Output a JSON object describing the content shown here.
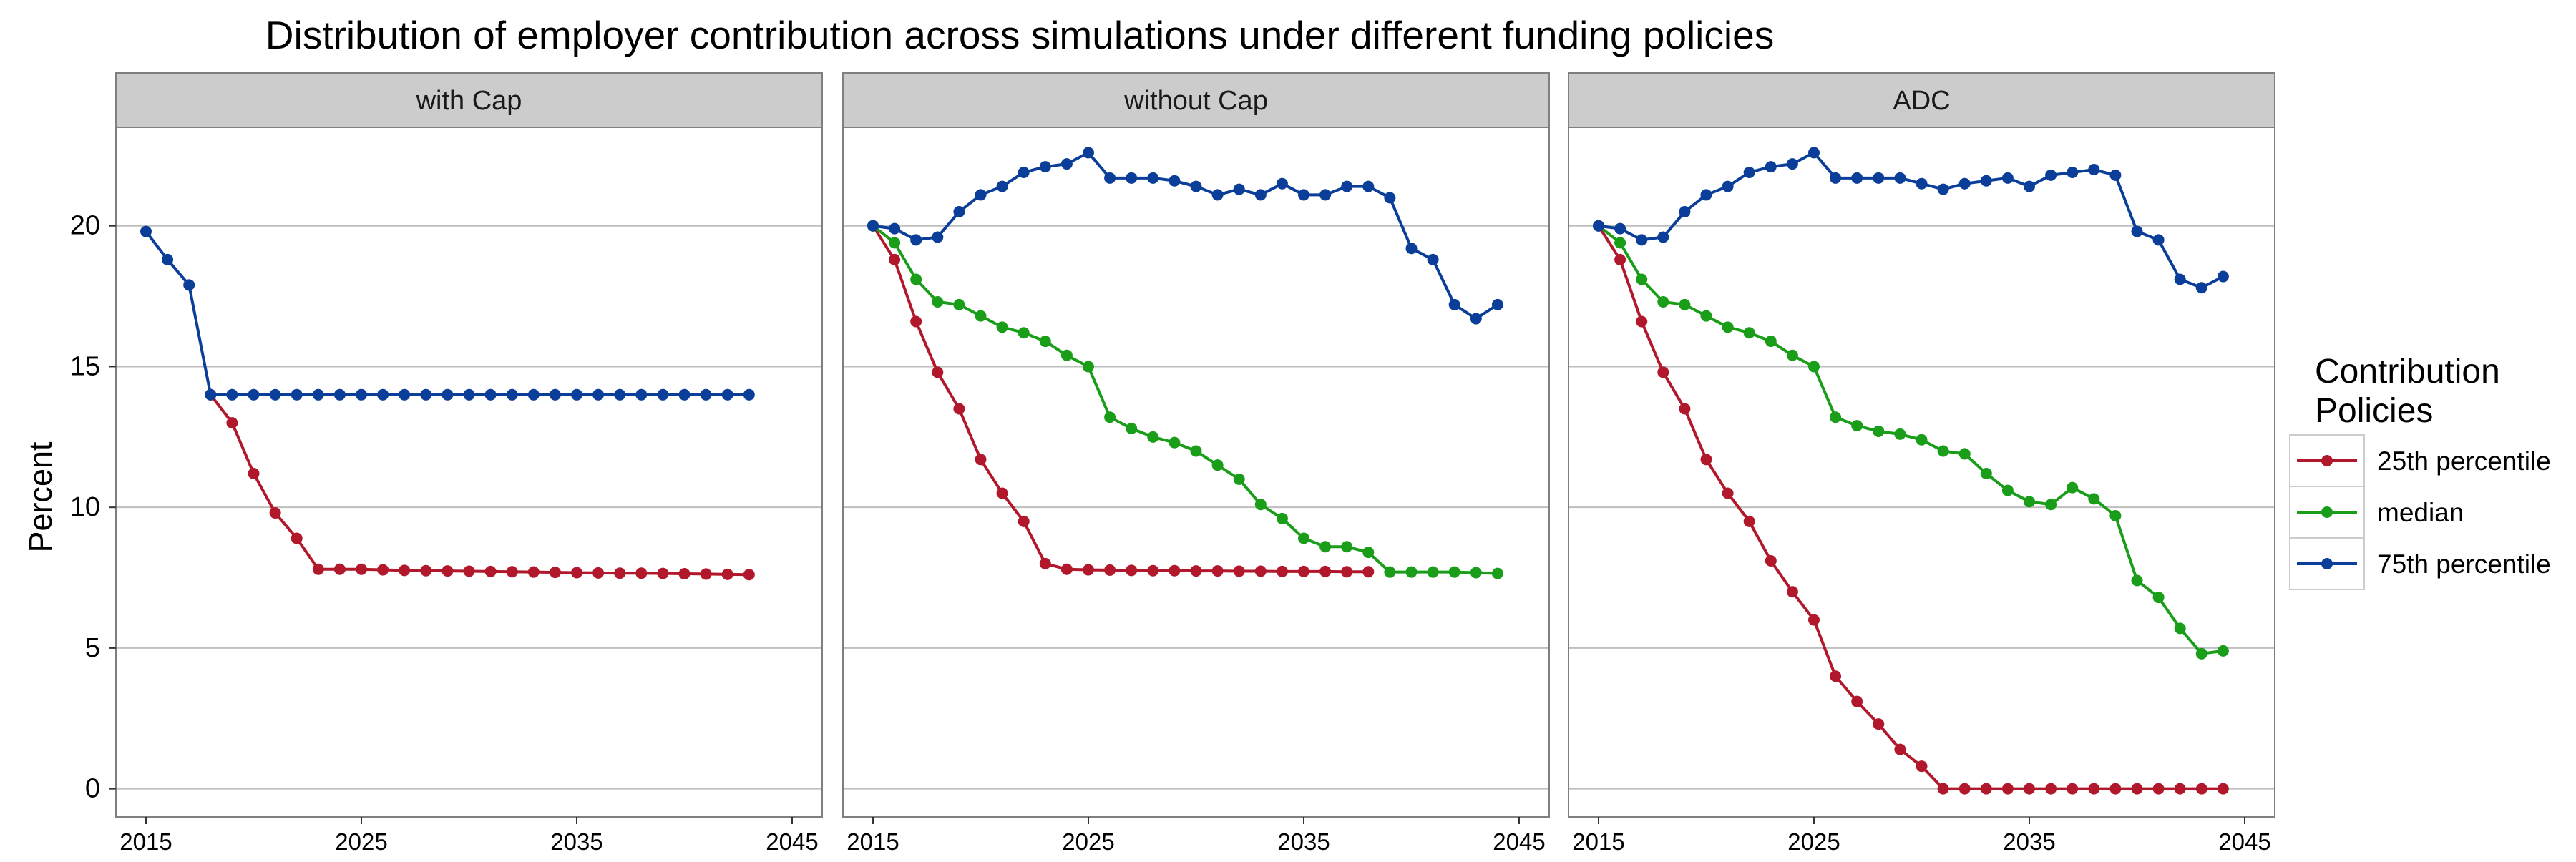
{
  "chart_data": {
    "type": "line",
    "title": "Distribution of employer contribution across simulations under different funding policies",
    "ylabel": "Percent",
    "xlabel": "",
    "xlim": [
      2015,
      2045
    ],
    "ylim": [
      -1,
      23.5
    ],
    "x_ticks": [
      2015,
      2025,
      2035,
      2045
    ],
    "y_ticks": [
      0,
      5,
      10,
      15,
      20
    ],
    "grid": true,
    "legend": {
      "title": "Contribution Policies",
      "position": "right",
      "entries": [
        {
          "label": "25th percentile",
          "color": "#B2182B"
        },
        {
          "label": "median",
          "color": "#1A9E1A"
        },
        {
          "label": "75th percentile",
          "color": "#0B3E99"
        }
      ]
    },
    "colors": {
      "p25": "#B2182B",
      "median": "#1A9E1A",
      "p75": "#0B3E99",
      "strip_bg": "#CCCCCC",
      "grid": "#BEBEBE",
      "frame": "#7F7F7F"
    },
    "panels": [
      {
        "label": "with Cap",
        "x_start": 2015,
        "series": [
          {
            "key": "p25",
            "name": "25th percentile",
            "color": "#B2182B",
            "x_start": 2018,
            "values": [
              14.0,
              13.0,
              11.2,
              9.8,
              8.9,
              7.8,
              7.8,
              7.8,
              7.78,
              7.76,
              7.75,
              7.74,
              7.73,
              7.72,
              7.71,
              7.7,
              7.69,
              7.68,
              7.67,
              7.66,
              7.66,
              7.65,
              7.64,
              7.63,
              7.62,
              7.61
            ]
          },
          {
            "key": "p75",
            "name": "75th percentile",
            "color": "#0B3E99",
            "x_start": 2015,
            "values": [
              19.8,
              18.8,
              17.9,
              14.0,
              14.0,
              14.0,
              14.0,
              14.0,
              14.0,
              14.0,
              14.0,
              14.0,
              14.0,
              14.0,
              14.0,
              14.0,
              14.0,
              14.0,
              14.0,
              14.0,
              14.0,
              14.0,
              14.0,
              14.0,
              14.0,
              14.0,
              14.0,
              14.0,
              14.0
            ]
          }
        ]
      },
      {
        "label": "without Cap",
        "x_start": 2015,
        "series": [
          {
            "key": "p25",
            "name": "25th percentile",
            "color": "#B2182B",
            "x_start": 2015,
            "values": [
              20.0,
              18.8,
              16.6,
              14.8,
              13.5,
              11.7,
              10.5,
              9.5,
              8.0,
              7.8,
              7.78,
              7.77,
              7.76,
              7.75,
              7.75,
              7.74,
              7.74,
              7.73,
              7.73,
              7.72,
              7.72,
              7.72,
              7.71,
              7.71
            ]
          },
          {
            "key": "median",
            "name": "median",
            "color": "#1A9E1A",
            "x_start": 2015,
            "values": [
              20.0,
              19.4,
              18.1,
              17.3,
              17.2,
              16.8,
              16.4,
              16.2,
              15.9,
              15.4,
              15.0,
              13.2,
              12.8,
              12.5,
              12.3,
              12.0,
              11.5,
              11.0,
              10.1,
              9.6,
              8.9,
              8.6,
              8.6,
              8.4,
              7.7,
              7.7,
              7.7,
              7.7,
              7.68,
              7.65
            ]
          },
          {
            "key": "p75",
            "name": "75th percentile",
            "color": "#0B3E99",
            "x_start": 2015,
            "values": [
              20.0,
              19.9,
              19.5,
              19.6,
              20.5,
              21.1,
              21.4,
              21.9,
              22.1,
              22.2,
              22.6,
              21.7,
              21.7,
              21.7,
              21.6,
              21.4,
              21.1,
              21.3,
              21.1,
              21.5,
              21.1,
              21.1,
              21.4,
              21.4,
              21.0,
              19.2,
              18.8,
              17.2,
              16.7,
              17.2
            ]
          }
        ]
      },
      {
        "label": "ADC",
        "x_start": 2015,
        "series": [
          {
            "key": "p25",
            "name": "25th percentile",
            "color": "#B2182B",
            "x_start": 2015,
            "values": [
              20.0,
              18.8,
              16.6,
              14.8,
              13.5,
              11.7,
              10.5,
              9.5,
              8.1,
              7.0,
              6.0,
              4.0,
              3.1,
              2.3,
              1.4,
              0.8,
              0,
              0,
              0,
              0,
              0,
              0,
              0,
              0,
              0,
              0,
              0,
              0,
              0,
              0
            ]
          },
          {
            "key": "median",
            "name": "median",
            "color": "#1A9E1A",
            "x_start": 2015,
            "values": [
              20.0,
              19.4,
              18.1,
              17.3,
              17.2,
              16.8,
              16.4,
              16.2,
              15.9,
              15.4,
              15.0,
              13.2,
              12.9,
              12.7,
              12.6,
              12.4,
              12.0,
              11.9,
              11.2,
              10.6,
              10.2,
              10.1,
              10.7,
              10.3,
              9.7,
              7.4,
              6.8,
              5.7,
              4.8,
              4.9
            ]
          },
          {
            "key": "p75",
            "name": "75th percentile",
            "color": "#0B3E99",
            "x_start": 2015,
            "values": [
              20.0,
              19.9,
              19.5,
              19.6,
              20.5,
              21.1,
              21.4,
              21.9,
              22.1,
              22.2,
              22.6,
              21.7,
              21.7,
              21.7,
              21.7,
              21.5,
              21.3,
              21.5,
              21.6,
              21.7,
              21.4,
              21.8,
              21.9,
              22.0,
              21.8,
              19.8,
              19.5,
              18.1,
              17.8,
              18.2
            ]
          }
        ]
      }
    ]
  }
}
